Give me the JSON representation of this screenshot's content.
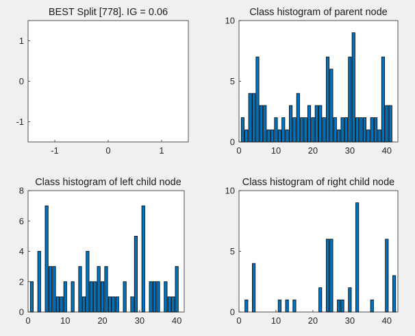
{
  "chart_data": [
    {
      "type": "bar",
      "title": "BEST Split [778]. IG = 0.06",
      "xlim": [
        -1.5,
        1.5
      ],
      "ylim": [
        -1.5,
        1.5
      ],
      "xticks": [
        -1,
        0,
        1
      ],
      "yticks": [
        -1,
        0,
        1
      ],
      "xtick_labels": [
        "-1",
        "0",
        "1"
      ],
      "ytick_labels": [
        "-1",
        "0",
        "1"
      ],
      "x": [],
      "values": []
    },
    {
      "type": "bar",
      "title": "Class histogram of parent node",
      "xlim": [
        0,
        43
      ],
      "ylim": [
        0,
        10
      ],
      "xticks": [
        0,
        10,
        20,
        30,
        40
      ],
      "yticks": [
        0,
        5,
        10
      ],
      "xtick_labels": [
        "0",
        "10",
        "20",
        "30",
        "40"
      ],
      "ytick_labels": [
        "0",
        "5",
        "10"
      ],
      "x": [
        1,
        2,
        3,
        4,
        5,
        6,
        7,
        8,
        9,
        10,
        11,
        12,
        13,
        14,
        15,
        16,
        17,
        18,
        19,
        20,
        21,
        22,
        23,
        24,
        25,
        26,
        27,
        28,
        29,
        30,
        31,
        32,
        33,
        34,
        35,
        36,
        37,
        38,
        39,
        40,
        41,
        42
      ],
      "values": [
        2,
        1,
        4,
        4,
        7,
        3,
        3,
        1,
        1,
        2,
        1,
        2,
        1,
        3,
        2,
        4,
        2,
        2,
        3,
        2,
        3,
        3,
        2,
        7,
        6,
        2,
        1,
        2,
        2,
        7,
        9,
        2,
        2,
        2,
        1,
        2,
        2,
        1,
        7,
        3,
        3,
        0
      ]
    },
    {
      "type": "bar",
      "title": "Class histogram of left child node",
      "xlim": [
        0,
        42
      ],
      "ylim": [
        0,
        8
      ],
      "xticks": [
        0,
        10,
        20,
        30,
        40
      ],
      "yticks": [
        0,
        2,
        4,
        6,
        8
      ],
      "xtick_labels": [
        "0",
        "10",
        "20",
        "30",
        "40"
      ],
      "ytick_labels": [
        "0",
        "2",
        "4",
        "6",
        "8"
      ],
      "x": [
        1,
        2,
        3,
        4,
        5,
        6,
        7,
        8,
        9,
        10,
        11,
        12,
        13,
        14,
        15,
        16,
        17,
        18,
        19,
        20,
        21,
        22,
        23,
        24,
        25,
        26,
        27,
        28,
        29,
        30,
        31,
        32,
        33,
        34,
        35,
        36,
        37,
        38,
        39,
        40,
        41
      ],
      "values": [
        2,
        0,
        4,
        0,
        7,
        3,
        3,
        1,
        1,
        2,
        0,
        2,
        0,
        3,
        1,
        4,
        2,
        2,
        3,
        2,
        3,
        1,
        1,
        1,
        0,
        2,
        0,
        1,
        5,
        0,
        7,
        0,
        2,
        2,
        2,
        0,
        2,
        1,
        1,
        3,
        0
      ]
    },
    {
      "type": "bar",
      "title": "Class histogram of right child node",
      "xlim": [
        0,
        43
      ],
      "ylim": [
        0,
        10
      ],
      "xticks": [
        0,
        10,
        20,
        30,
        40
      ],
      "yticks": [
        0,
        5,
        10
      ],
      "xtick_labels": [
        "0",
        "10",
        "20",
        "30",
        "40"
      ],
      "ytick_labels": [
        "0",
        "5",
        "10"
      ],
      "x": [
        1,
        2,
        3,
        4,
        5,
        6,
        7,
        8,
        9,
        10,
        11,
        12,
        13,
        14,
        15,
        16,
        17,
        18,
        19,
        20,
        21,
        22,
        23,
        24,
        25,
        26,
        27,
        28,
        29,
        30,
        31,
        32,
        33,
        34,
        35,
        36,
        37,
        38,
        39,
        40,
        41,
        42
      ],
      "values": [
        0,
        1,
        0,
        4,
        0,
        0,
        0,
        0,
        0,
        0,
        1,
        0,
        1,
        0,
        1,
        0,
        0,
        0,
        0,
        0,
        0,
        2,
        0,
        6,
        6,
        0,
        1,
        1,
        0,
        2,
        0,
        9,
        0,
        0,
        0,
        1,
        0,
        0,
        0,
        6,
        0,
        3
      ]
    }
  ],
  "colors": {
    "bar_fill": "#0072BD",
    "bar_edge": "#000000",
    "axes_background": "#FFFFFF",
    "figure_background": "#F0F0F0",
    "axis_color": "#262626"
  }
}
